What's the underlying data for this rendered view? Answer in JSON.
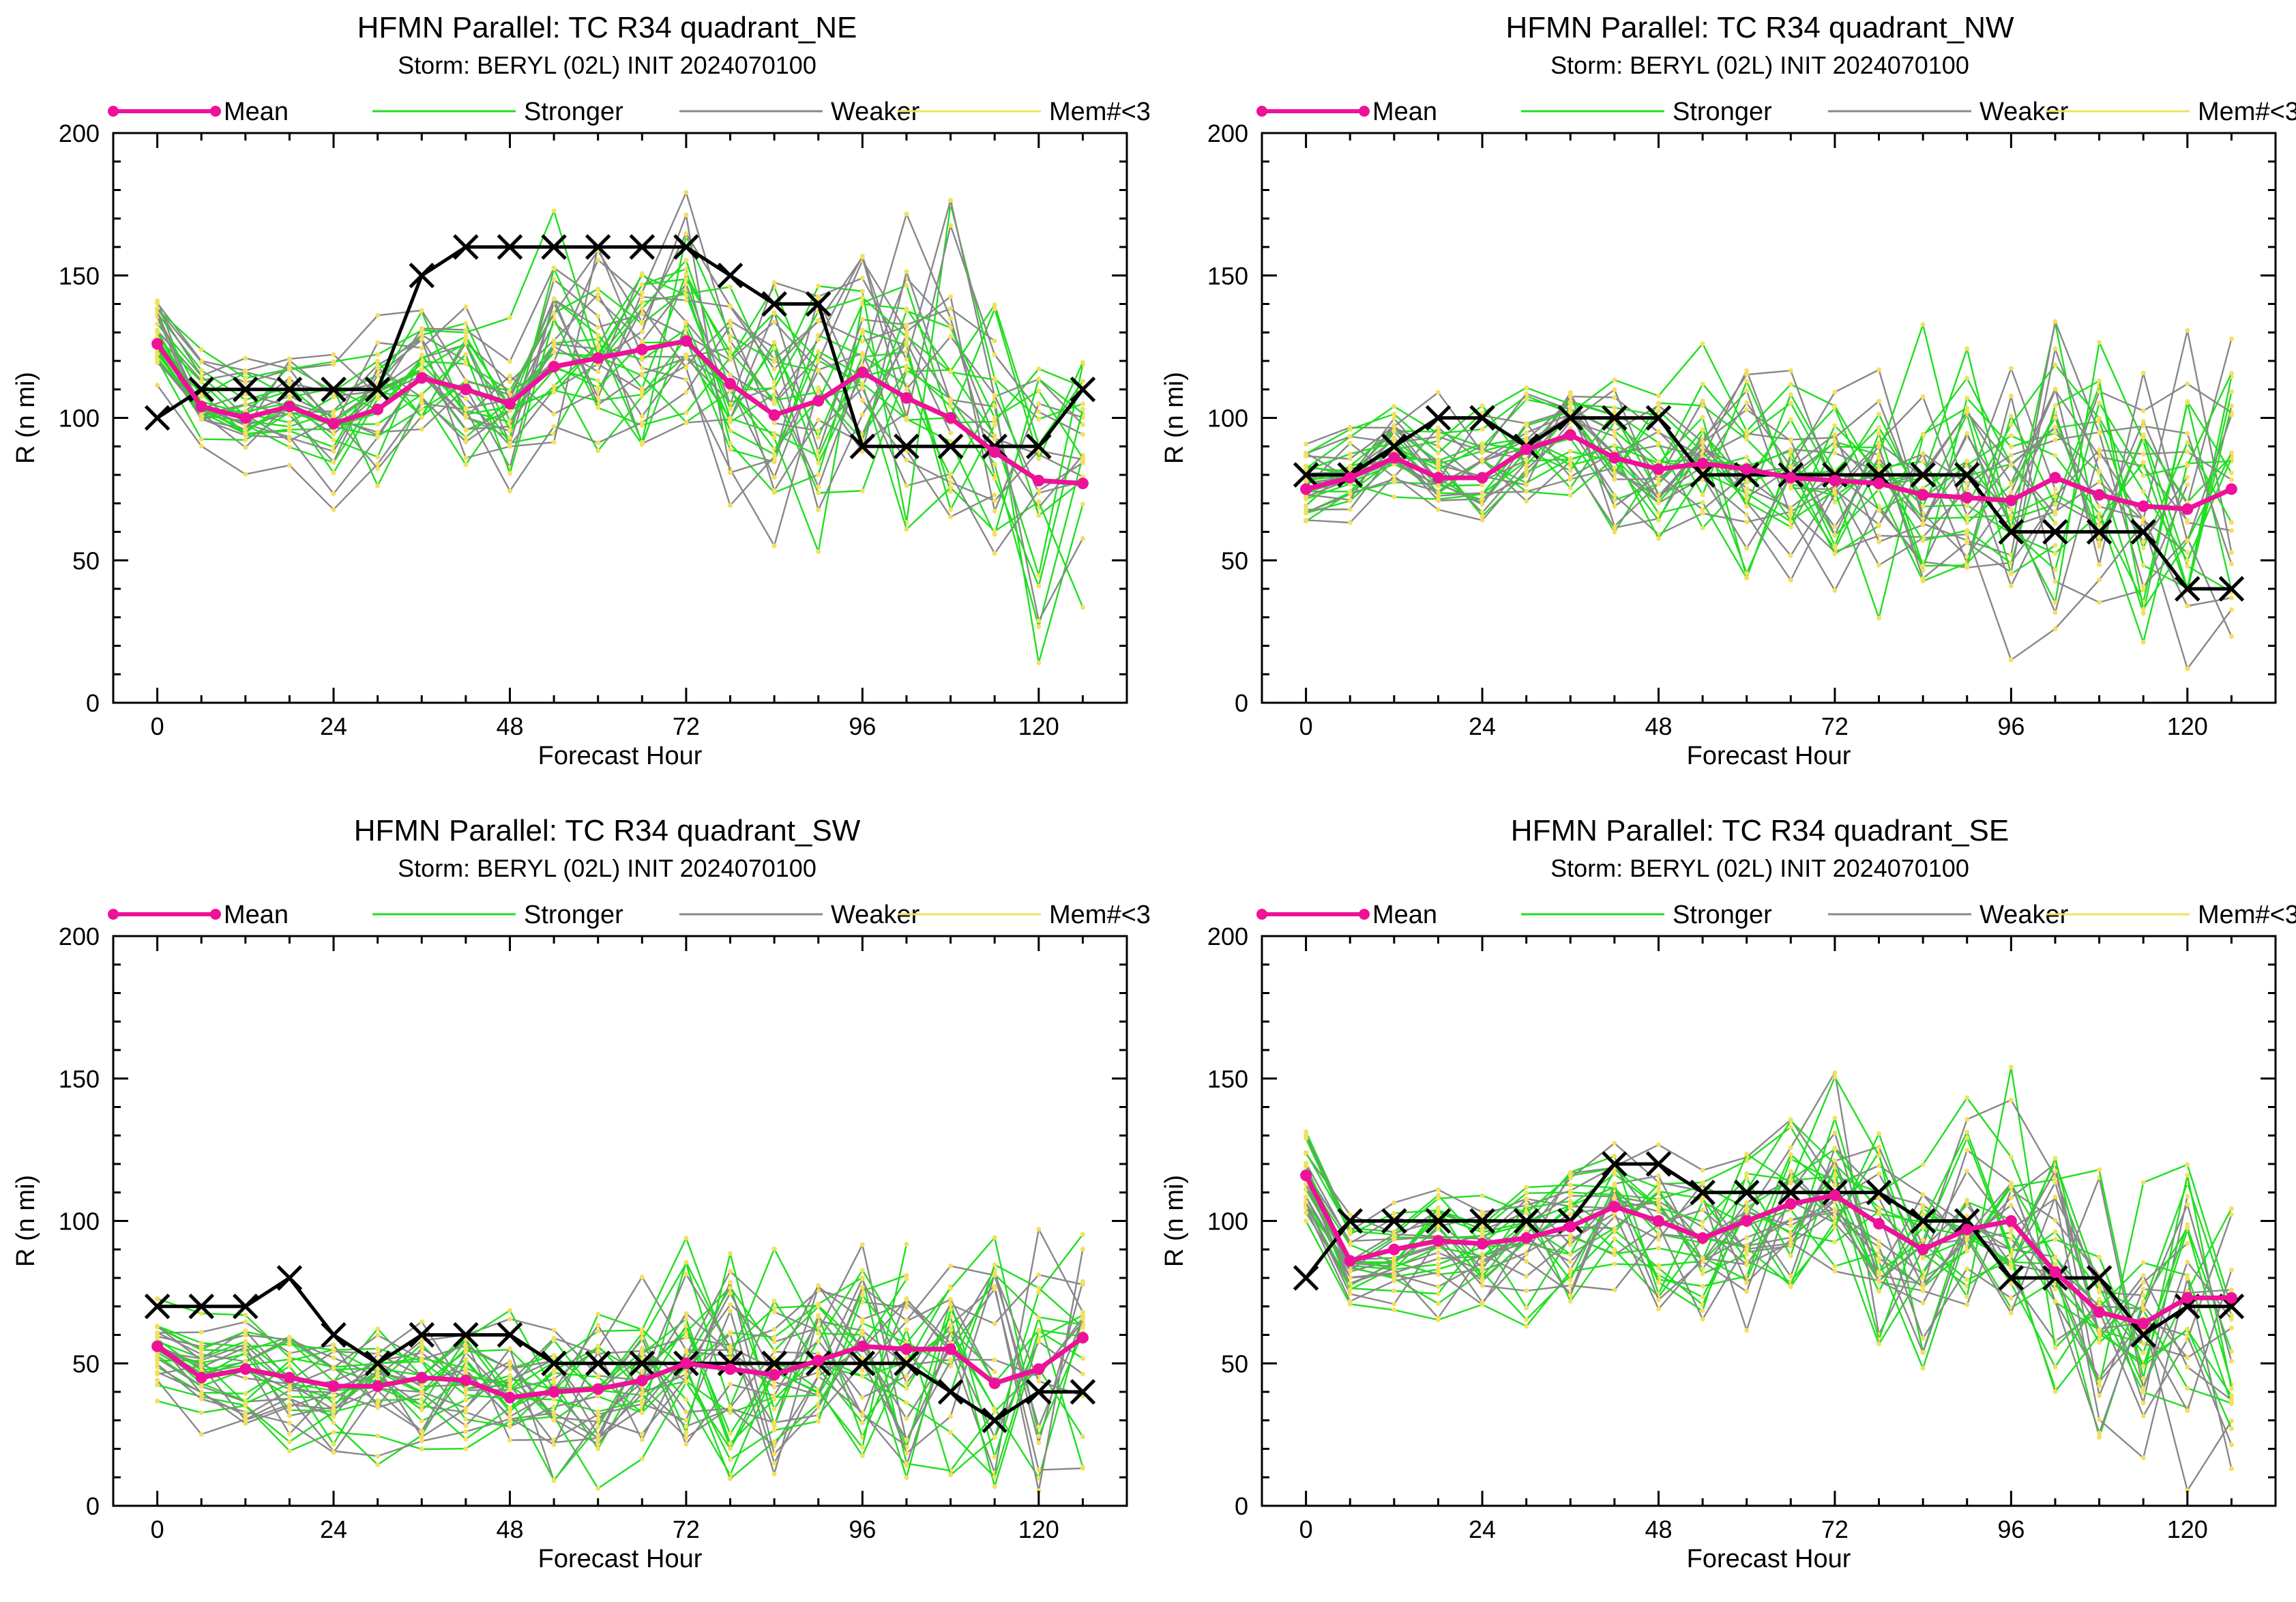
{
  "colors": {
    "mean": "#ee1199",
    "stronger": "#22dd22",
    "weaker": "#888888",
    "mem": "#f2e060",
    "obs": "#000000"
  },
  "legend": [
    "Mean",
    "Stronger",
    "Weaker",
    "Mem#<3"
  ],
  "chart_data": [
    {
      "type": "line",
      "title": "HFMN Parallel: TC  R34 quadrant_NE",
      "subtitle": "Storm: BERYL (02L) INIT 2024070100",
      "xlabel": "Forecast Hour",
      "ylabel": "R (n mi)",
      "xlim": [
        -6,
        132
      ],
      "ylim": [
        0,
        200
      ],
      "xticks": [
        "0",
        "24",
        "48",
        "72",
        "96",
        "120"
      ],
      "yticks": [
        "0",
        "50",
        "100",
        "150",
        "200"
      ],
      "x": [
        0,
        6,
        12,
        18,
        24,
        30,
        36,
        42,
        48,
        54,
        60,
        66,
        72,
        78,
        84,
        90,
        96,
        102,
        108,
        114,
        120,
        126
      ],
      "series": [
        {
          "name": "Mean",
          "values": [
            126,
            104,
            100,
            104,
            98,
            103,
            114,
            110,
            105,
            118,
            121,
            124,
            127,
            112,
            101,
            106,
            116,
            107,
            100,
            88,
            78,
            77
          ]
        },
        {
          "values": [
            100,
            110,
            110,
            110,
            110,
            110,
            150,
            160,
            160,
            160,
            160,
            160,
            160,
            150,
            140,
            140,
            90,
            90,
            90,
            90,
            90,
            110
          ]
        }
      ]
    },
    {
      "type": "line",
      "title": "HFMN Parallel: TC  R34 quadrant_NW",
      "subtitle": "Storm: BERYL (02L) INIT 2024070100",
      "xlabel": "Forecast Hour",
      "ylabel": "R (n mi)",
      "xlim": [
        -6,
        132
      ],
      "ylim": [
        0,
        200
      ],
      "xticks": [
        "0",
        "24",
        "48",
        "72",
        "96",
        "120"
      ],
      "yticks": [
        "0",
        "50",
        "100",
        "150",
        "200"
      ],
      "x": [
        0,
        6,
        12,
        18,
        24,
        30,
        36,
        42,
        48,
        54,
        60,
        66,
        72,
        78,
        84,
        90,
        96,
        102,
        108,
        114,
        120,
        126
      ],
      "series": [
        {
          "name": "Mean",
          "values": [
            75,
            79,
            86,
            79,
            79,
            89,
            94,
            86,
            82,
            84,
            82,
            79,
            78,
            77,
            73,
            72,
            71,
            79,
            73,
            69,
            68,
            75
          ]
        },
        {
          "values": [
            80,
            80,
            90,
            100,
            100,
            90,
            100,
            100,
            100,
            80,
            80,
            80,
            80,
            80,
            80,
            80,
            60,
            60,
            60,
            60,
            40,
            40
          ]
        }
      ]
    },
    {
      "type": "line",
      "title": "HFMN Parallel: TC  R34 quadrant_SW",
      "subtitle": "Storm: BERYL (02L) INIT 2024070100",
      "xlabel": "Forecast Hour",
      "ylabel": "R (n mi)",
      "xlim": [
        -6,
        132
      ],
      "ylim": [
        0,
        200
      ],
      "xticks": [
        "0",
        "24",
        "48",
        "72",
        "96",
        "120"
      ],
      "yticks": [
        "0",
        "50",
        "100",
        "150",
        "200"
      ],
      "x": [
        0,
        6,
        12,
        18,
        24,
        30,
        36,
        42,
        48,
        54,
        60,
        66,
        72,
        78,
        84,
        90,
        96,
        102,
        108,
        114,
        120,
        126
      ],
      "series": [
        {
          "name": "Mean",
          "values": [
            56,
            45,
            48,
            45,
            42,
            42,
            45,
            44,
            38,
            40,
            41,
            44,
            50,
            48,
            46,
            51,
            56,
            55,
            55,
            43,
            48,
            59
          ]
        },
        {
          "values": [
            70,
            70,
            70,
            80,
            60,
            50,
            60,
            60,
            60,
            50,
            50,
            50,
            50,
            50,
            50,
            50,
            50,
            50,
            40,
            30,
            40,
            40
          ]
        }
      ]
    },
    {
      "type": "line",
      "title": "HFMN Parallel: TC  R34 quadrant_SE",
      "subtitle": "Storm: BERYL (02L) INIT 2024070100",
      "xlabel": "Forecast Hour",
      "ylabel": "R (n mi)",
      "xlim": [
        -6,
        132
      ],
      "ylim": [
        0,
        200
      ],
      "xticks": [
        "0",
        "24",
        "48",
        "72",
        "96",
        "120"
      ],
      "yticks": [
        "0",
        "50",
        "100",
        "150",
        "200"
      ],
      "x": [
        0,
        6,
        12,
        18,
        24,
        30,
        36,
        42,
        48,
        54,
        60,
        66,
        72,
        78,
        84,
        90,
        96,
        102,
        108,
        114,
        120,
        126
      ],
      "series": [
        {
          "name": "Mean",
          "values": [
            116,
            86,
            90,
            93,
            92,
            94,
            98,
            105,
            100,
            94,
            100,
            106,
            109,
            99,
            90,
            97,
            100,
            82,
            68,
            64,
            73,
            73
          ]
        },
        {
          "values": [
            80,
            100,
            100,
            100,
            100,
            100,
            100,
            120,
            120,
            110,
            110,
            110,
            110,
            110,
            100,
            100,
            80,
            80,
            80,
            60,
            70,
            70
          ]
        }
      ]
    }
  ]
}
